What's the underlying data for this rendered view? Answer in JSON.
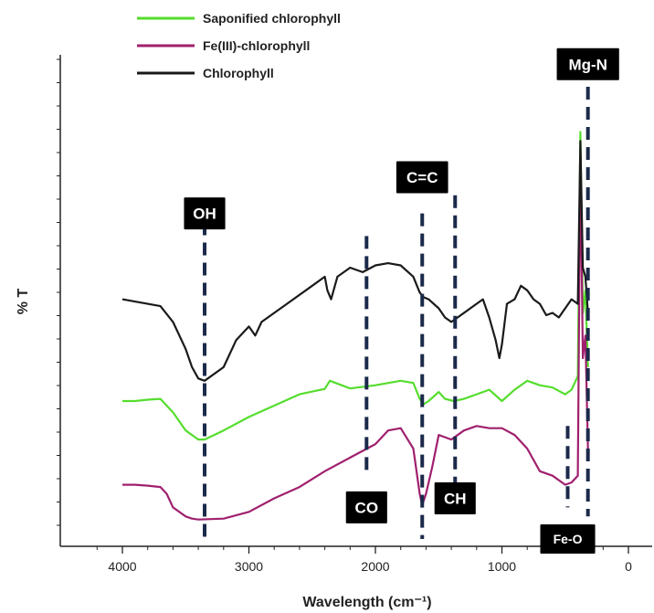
{
  "chart_data": {
    "type": "line",
    "title": "",
    "xlabel": "Wavelength (cm⁻¹)",
    "ylabel": "% T",
    "xlim": [
      4000,
      0
    ],
    "x_reversed": true,
    "xticks": [
      4000,
      3000,
      2000,
      1000,
      0
    ],
    "ylim": [
      0,
      100
    ],
    "y_tick_labels_shown": false,
    "grid": false,
    "legend_position": "top-left",
    "colors": {
      "Saponified chlorophyll": "#55dd2e",
      "Fe(III)-chlorophyll": "#a0206e",
      "Chlorophyll": "#1a1a1a",
      "annotation_line": "#1b2a4a"
    },
    "series": [
      {
        "name": "Saponified chlorophyll",
        "x": [
          4000,
          3900,
          3800,
          3700,
          3600,
          3500,
          3400,
          3350,
          3200,
          3000,
          2800,
          2600,
          2400,
          2360,
          2200,
          2000,
          1800,
          1700,
          1650,
          1620,
          1580,
          1500,
          1450,
          1380,
          1300,
          1200,
          1100,
          1000,
          900,
          800,
          700,
          600,
          500,
          450,
          400,
          380,
          360,
          340,
          320
        ],
        "y": [
          30.5,
          30.5,
          30.8,
          31.0,
          28.0,
          24.0,
          22.0,
          22.0,
          24.0,
          27.0,
          29.5,
          32.0,
          33.2,
          35.0,
          33.3,
          34.0,
          35.0,
          34.5,
          31.0,
          29.8,
          30.5,
          32.5,
          31.0,
          30.5,
          31.0,
          32.0,
          33.0,
          30.5,
          33.0,
          35.0,
          34.0,
          33.5,
          32.0,
          33.0,
          36.0,
          90.0,
          50.0,
          55.0,
          38.0
        ]
      },
      {
        "name": "Fe(III)-chlorophyll",
        "x": [
          4000,
          3900,
          3800,
          3700,
          3650,
          3600,
          3500,
          3450,
          3400,
          3200,
          3000,
          2800,
          2600,
          2400,
          2200,
          2000,
          1900,
          1800,
          1700,
          1650,
          1630,
          1600,
          1550,
          1500,
          1400,
          1300,
          1200,
          1100,
          1000,
          900,
          800,
          700,
          600,
          500,
          450,
          400,
          380,
          360,
          340,
          320
        ],
        "y": [
          12.0,
          12.0,
          11.8,
          11.5,
          10.0,
          7.0,
          5.0,
          4.5,
          4.3,
          4.5,
          6.0,
          9.0,
          11.5,
          15.0,
          18.0,
          21.0,
          24.0,
          24.5,
          20.0,
          10.0,
          7.5,
          10.0,
          16.0,
          23.0,
          22.0,
          24.0,
          25.0,
          24.5,
          24.5,
          23.0,
          20.0,
          15.0,
          14.0,
          12.0,
          12.5,
          14.0,
          85.0,
          40.0,
          45.0,
          20.0
        ]
      },
      {
        "name": "Chlorophyll",
        "x": [
          4000,
          3900,
          3800,
          3700,
          3600,
          3500,
          3450,
          3400,
          3350,
          3200,
          3100,
          3000,
          2950,
          2900,
          2700,
          2500,
          2400,
          2380,
          2350,
          2300,
          2200,
          2100,
          2000,
          1900,
          1800,
          1700,
          1650,
          1620,
          1580,
          1500,
          1450,
          1400,
          1350,
          1250,
          1150,
          1100,
          1050,
          1020,
          1000,
          960,
          900,
          850,
          800,
          750,
          700,
          650,
          600,
          550,
          500,
          450,
          400,
          380,
          360,
          340,
          320
        ],
        "y": [
          53.0,
          52.5,
          52.0,
          51.5,
          48.0,
          42.0,
          38.0,
          35.5,
          35.0,
          38.0,
          44.0,
          47.0,
          45.0,
          48.0,
          52.0,
          56.0,
          58.0,
          55.0,
          53.0,
          58.0,
          60.0,
          59.0,
          60.5,
          61.0,
          60.5,
          58.0,
          54.5,
          53.5,
          53.0,
          51.0,
          49.0,
          48.0,
          49.0,
          51.0,
          53.0,
          49.0,
          44.0,
          40.0,
          43.0,
          52.0,
          53.0,
          56.0,
          55.0,
          53.0,
          52.0,
          49.5,
          50.0,
          49.0,
          51.0,
          53.0,
          52.0,
          88.0,
          60.0,
          58.0,
          50.0
        ]
      }
    ],
    "annotations": [
      {
        "label": "OH",
        "x": 3350,
        "top": 70,
        "bottom": 0,
        "box_y": 72
      },
      {
        "label": "CO",
        "x": 2070,
        "top": 67,
        "bottom": 14,
        "box_y": 7
      },
      {
        "label": "C=C",
        "x": 1630,
        "top": 72,
        "bottom": 0,
        "box_y": 80
      },
      {
        "label": "CH",
        "x": 1370,
        "top": 76,
        "bottom": 7,
        "box_y": 9
      },
      {
        "label": "Fe-O",
        "x": 480,
        "top": 25,
        "bottom": 7,
        "box_y": 0
      },
      {
        "label": "Mg-N",
        "x": 320,
        "top": 100,
        "bottom": 5,
        "box_y": 105
      }
    ]
  }
}
